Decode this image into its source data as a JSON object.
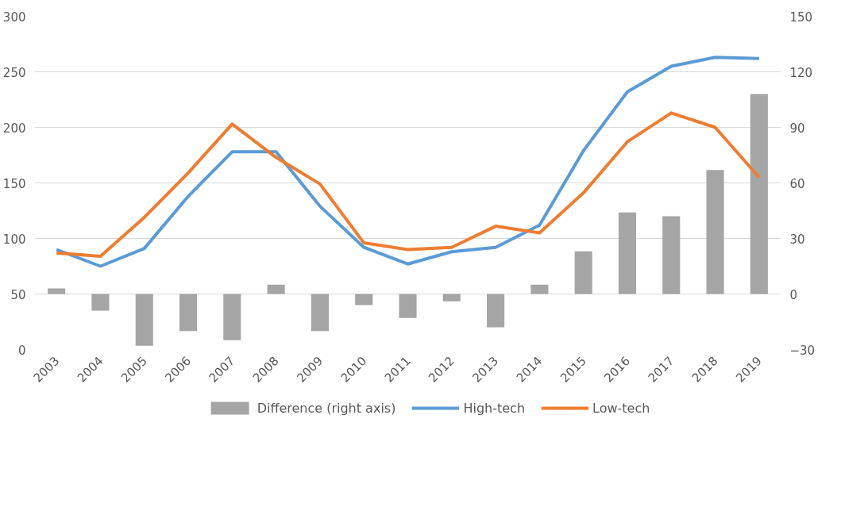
{
  "chart_data": {
    "type": "line",
    "categories": [
      "2003",
      "2004",
      "2005",
      "2006",
      "2007",
      "2008",
      "2009",
      "2010",
      "2011",
      "2012",
      "2013",
      "2014",
      "2015",
      "2016",
      "2017",
      "2018",
      "2019"
    ],
    "series": [
      {
        "name": "Difference (right axis)",
        "type": "bar",
        "axis": "y2",
        "color": "#a5a5a5",
        "values": [
          3,
          -9,
          -28,
          -20,
          -25,
          5,
          -20,
          -6,
          -13,
          -4,
          -18,
          5,
          23,
          44,
          42,
          67,
          108
        ]
      },
      {
        "name": "High-tech",
        "color": "#5b9bd5",
        "values": [
          90,
          75,
          91,
          138,
          178,
          178,
          129,
          92,
          77,
          88,
          92,
          112,
          179,
          232,
          255,
          263,
          262
        ]
      },
      {
        "name": "Low-tech",
        "color": "#ed7d31",
        "values": [
          87,
          84,
          119,
          159,
          203,
          173,
          149,
          96,
          90,
          92,
          111,
          105,
          141,
          187,
          213,
          200,
          155
        ]
      }
    ],
    "ylim": [
      0,
      300
    ],
    "yticks": [
      0,
      50,
      100,
      150,
      200,
      250,
      300
    ],
    "y2lim": [
      -30,
      150
    ],
    "y2ticks": [
      -30,
      0,
      30,
      60,
      90,
      120,
      150
    ],
    "grid": "y",
    "legend": "bottom",
    "marker": "none",
    "line_style": "solid"
  }
}
